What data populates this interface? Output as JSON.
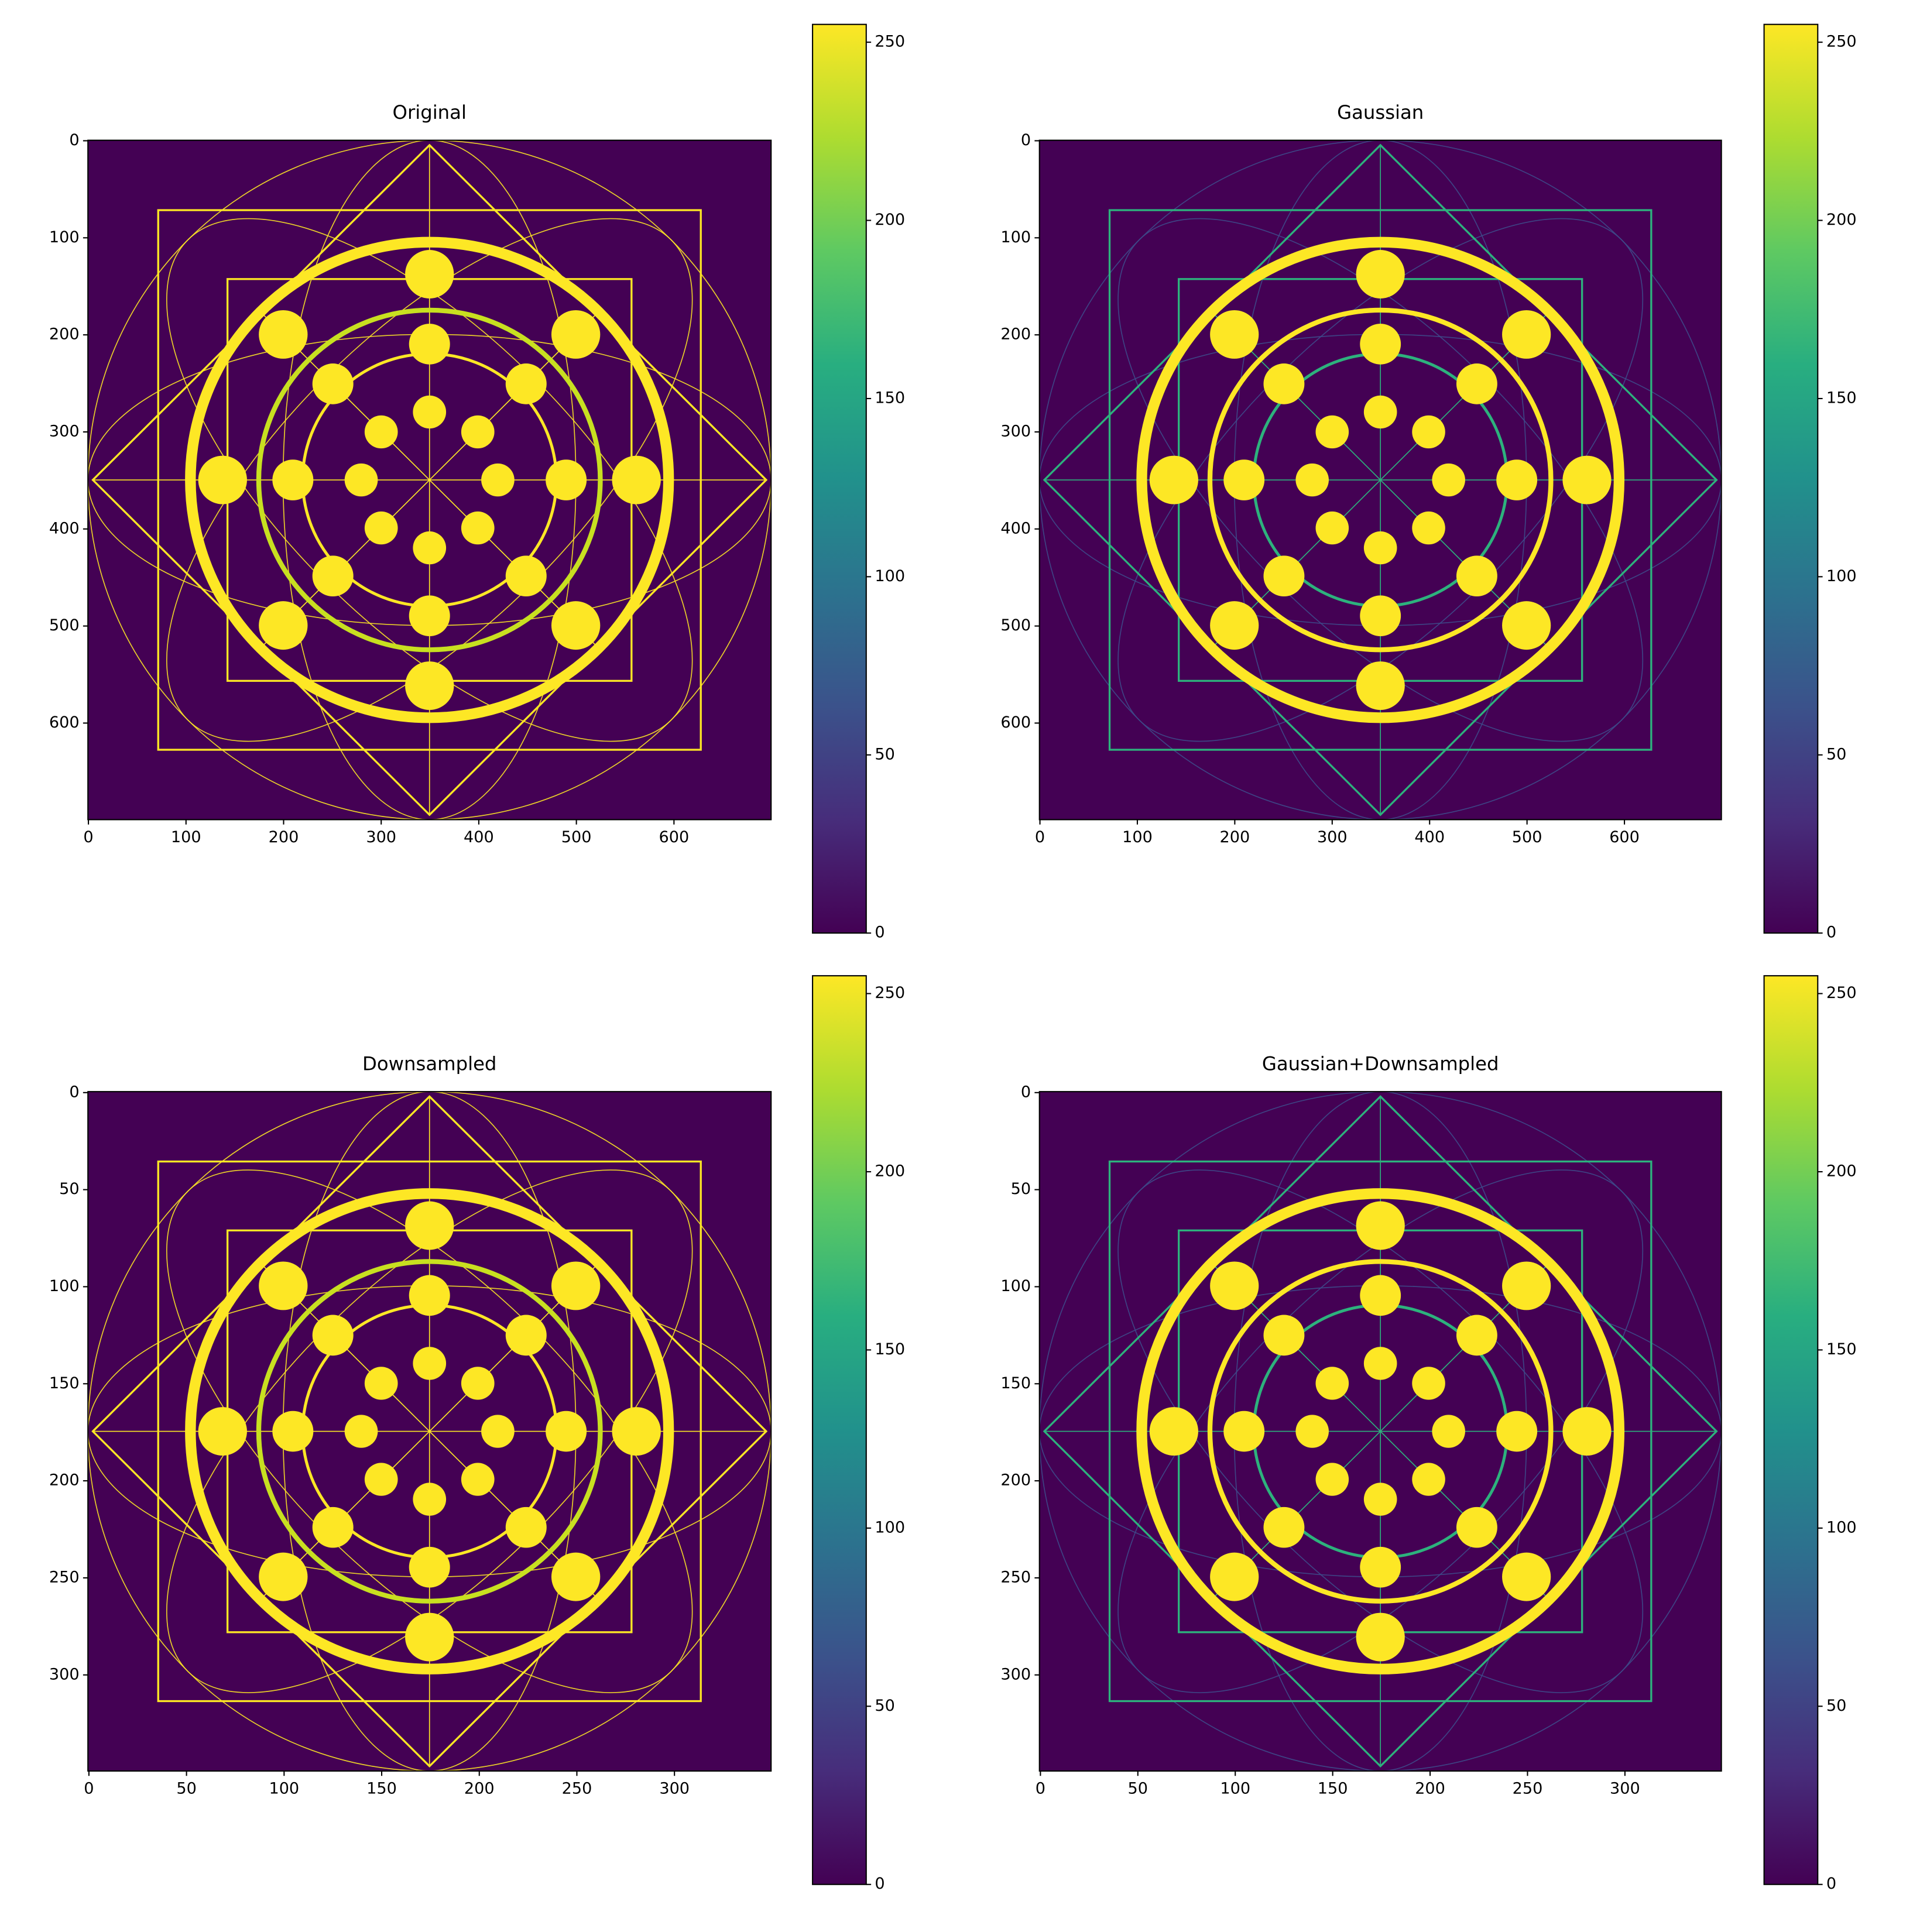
{
  "chart_data": [
    {
      "type": "image",
      "title": "Original",
      "xlim": [
        -0.5,
        699.5
      ],
      "ylim": [
        699.5,
        -0.5
      ],
      "xticks": [
        0,
        100,
        200,
        300,
        400,
        500,
        600
      ],
      "yticks": [
        0,
        100,
        200,
        300,
        400,
        500,
        600
      ],
      "clim": [
        0,
        255
      ],
      "cticks": [
        0,
        50,
        100,
        150,
        200,
        250
      ],
      "colormap": "viridis",
      "colors": {
        "background": "#440154",
        "lines": "#fde725",
        "thin": "#fde725",
        "mid_ring": "#c8e020",
        "dots": "#fde725"
      }
    },
    {
      "type": "image",
      "title": "Gaussian",
      "xlim": [
        -0.5,
        699.5
      ],
      "ylim": [
        699.5,
        -0.5
      ],
      "xticks": [
        0,
        100,
        200,
        300,
        400,
        500,
        600
      ],
      "yticks": [
        0,
        100,
        200,
        300,
        400,
        500,
        600
      ],
      "clim": [
        0,
        255
      ],
      "cticks": [
        0,
        50,
        100,
        150,
        200,
        250
      ],
      "colormap": "viridis",
      "colors": {
        "background": "#440154",
        "lines": "#2db27d",
        "thin": "#3e4a89",
        "mid_ring": "#fde725",
        "dots": "#fde725"
      }
    },
    {
      "type": "image",
      "title": "Downsampled",
      "xlim": [
        -0.5,
        349.5
      ],
      "ylim": [
        349.5,
        -0.5
      ],
      "xticks": [
        0,
        50,
        100,
        150,
        200,
        250,
        300
      ],
      "yticks": [
        0,
        50,
        100,
        150,
        200,
        250,
        300
      ],
      "clim": [
        0,
        255
      ],
      "cticks": [
        0,
        50,
        100,
        150,
        200,
        250
      ],
      "colormap": "viridis",
      "colors": {
        "background": "#440154",
        "lines": "#fde725",
        "thin": "#fde725",
        "mid_ring": "#c8e020",
        "dots": "#fde725"
      }
    },
    {
      "type": "image",
      "title": "Gaussian+Downsampled",
      "xlim": [
        -0.5,
        349.5
      ],
      "ylim": [
        349.5,
        -0.5
      ],
      "xticks": [
        0,
        50,
        100,
        150,
        200,
        250,
        300
      ],
      "yticks": [
        0,
        50,
        100,
        150,
        200,
        250,
        300
      ],
      "clim": [
        0,
        255
      ],
      "cticks": [
        0,
        50,
        100,
        150,
        200,
        250
      ],
      "colormap": "viridis",
      "colors": {
        "background": "#440154",
        "lines": "#2db27d",
        "thin": "#3e4a89",
        "mid_ring": "#fde725",
        "dots": "#fde725"
      }
    }
  ]
}
